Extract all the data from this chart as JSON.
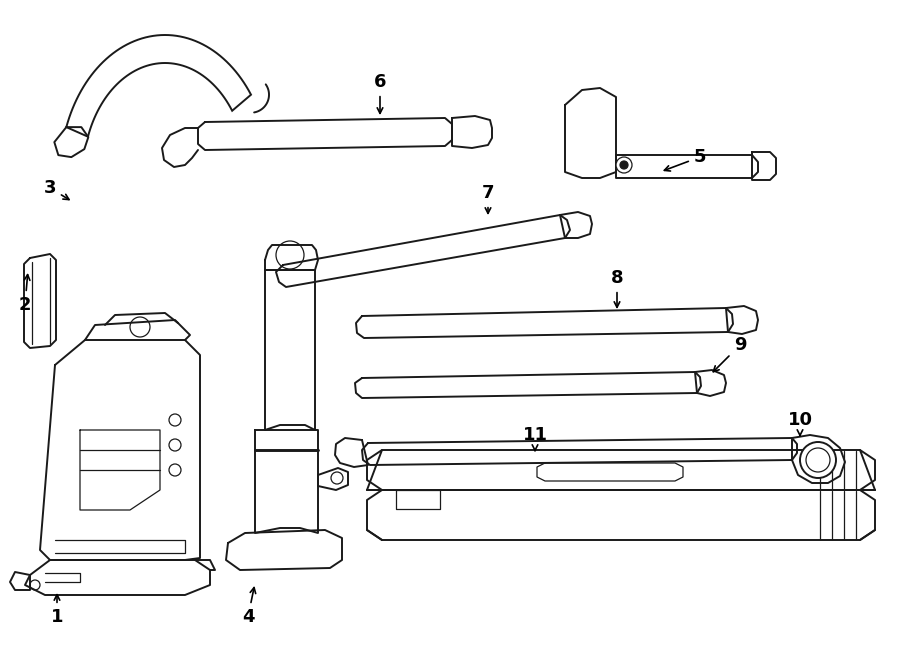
{
  "bg_color": "#ffffff",
  "line_color": "#1a1a1a",
  "lw": 1.4,
  "tlw": 0.9,
  "fig_width": 9.0,
  "fig_height": 6.61,
  "dpi": 100
}
